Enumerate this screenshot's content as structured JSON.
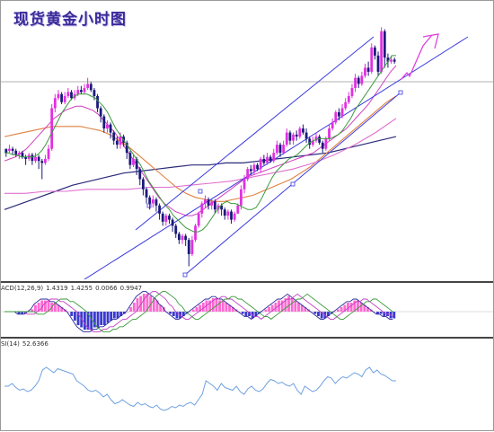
{
  "header": {
    "title": "现货黄金小时图"
  },
  "indicators": {
    "macd": {
      "label": "ACD(12,26,9)",
      "values": [
        "1.4319",
        "1.4255",
        "0.0066",
        "0.9947"
      ]
    },
    "rsi": {
      "label": "SI(14)",
      "value": "52.6366"
    }
  },
  "colors": {
    "bull_candle": "#e030e0",
    "bear_candle": "#1a1a7a",
    "trend_channel": "#3a3ae0",
    "ma_green": "#3a9a3a",
    "ma_magenta": "#d040c0",
    "ma_orange": "#e08040",
    "ma_navy": "#2a2a7a",
    "ma_pink": "#e070d0",
    "rsi_line": "#6fa0e0",
    "arrow": "#e040e0"
  },
  "chart_data": {
    "type": "candlestick",
    "title": "现货黄金小时图",
    "candles": [
      [
        60,
        58,
        60,
        56
      ],
      [
        59,
        60,
        62,
        58
      ],
      [
        60,
        59,
        61,
        57
      ],
      [
        59,
        57,
        60,
        56
      ],
      [
        57,
        58,
        59,
        55
      ],
      [
        58,
        56,
        59,
        55
      ],
      [
        56,
        55,
        57,
        52
      ],
      [
        55,
        57,
        58,
        54
      ],
      [
        57,
        54,
        58,
        52
      ],
      [
        54,
        56,
        58,
        53
      ],
      [
        56,
        54,
        57,
        50
      ],
      [
        54,
        53,
        55,
        45
      ],
      [
        53,
        55,
        57,
        52
      ],
      [
        55,
        60,
        62,
        54
      ],
      [
        60,
        80,
        82,
        59
      ],
      [
        80,
        85,
        87,
        78
      ],
      [
        85,
        87,
        89,
        84
      ],
      [
        87,
        83,
        88,
        82
      ],
      [
        83,
        86,
        88,
        82
      ],
      [
        86,
        88,
        90,
        85
      ],
      [
        88,
        85,
        89,
        84
      ],
      [
        85,
        87,
        89,
        84
      ],
      [
        87,
        89,
        91,
        86
      ],
      [
        89,
        88,
        91,
        87
      ],
      [
        88,
        90,
        92,
        87
      ],
      [
        90,
        92,
        95,
        89
      ],
      [
        92,
        89,
        93,
        88
      ],
      [
        89,
        86,
        90,
        84
      ],
      [
        86,
        80,
        87,
        78
      ],
      [
        80,
        76,
        81,
        73
      ],
      [
        76,
        70,
        77,
        68
      ],
      [
        70,
        72,
        74,
        68
      ],
      [
        72,
        68,
        73,
        65
      ],
      [
        68,
        64,
        69,
        62
      ],
      [
        64,
        62,
        66,
        60
      ],
      [
        62,
        66,
        68,
        60
      ],
      [
        66,
        63,
        67,
        61
      ],
      [
        63,
        58,
        64,
        55
      ],
      [
        58,
        52,
        59,
        50
      ],
      [
        52,
        55,
        57,
        51
      ],
      [
        55,
        50,
        56,
        47
      ],
      [
        50,
        45,
        51,
        42
      ],
      [
        45,
        40,
        46,
        37
      ],
      [
        40,
        36,
        41,
        33
      ],
      [
        36,
        33,
        37,
        30
      ],
      [
        33,
        35,
        37,
        31
      ],
      [
        35,
        32,
        36,
        29
      ],
      [
        32,
        28,
        33,
        25
      ],
      [
        28,
        24,
        29,
        22
      ],
      [
        24,
        27,
        28,
        22
      ],
      [
        27,
        25,
        28,
        23
      ],
      [
        25,
        22,
        26,
        19
      ],
      [
        22,
        18,
        23,
        16
      ],
      [
        18,
        15,
        19,
        13
      ],
      [
        15,
        17,
        18,
        13
      ],
      [
        17,
        15,
        18,
        12
      ],
      [
        15,
        8,
        16,
        2
      ],
      [
        8,
        15,
        17,
        7
      ],
      [
        15,
        22,
        23,
        14
      ],
      [
        22,
        28,
        29,
        21
      ],
      [
        28,
        33,
        34,
        26
      ],
      [
        33,
        35,
        37,
        31
      ],
      [
        35,
        32,
        36,
        30
      ],
      [
        32,
        34,
        35,
        30
      ],
      [
        34,
        30,
        35,
        28
      ],
      [
        30,
        32,
        33,
        28
      ],
      [
        32,
        30,
        33,
        27
      ],
      [
        30,
        27,
        31,
        25
      ],
      [
        27,
        29,
        30,
        25
      ],
      [
        29,
        25,
        30,
        23
      ],
      [
        25,
        28,
        29,
        24
      ],
      [
        28,
        32,
        33,
        45
      ],
      [
        32,
        40,
        42,
        30
      ],
      [
        40,
        45,
        47,
        38
      ],
      [
        45,
        50,
        51,
        44
      ],
      [
        50,
        49,
        52,
        47
      ],
      [
        49,
        52,
        53,
        47
      ],
      [
        52,
        50,
        53,
        49
      ],
      [
        50,
        55,
        56,
        48
      ],
      [
        55,
        53,
        57,
        52
      ],
      [
        53,
        56,
        58,
        52
      ],
      [
        56,
        54,
        57,
        53
      ],
      [
        54,
        58,
        60,
        53
      ],
      [
        58,
        62,
        64,
        57
      ],
      [
        62,
        58,
        63,
        56
      ],
      [
        58,
        62,
        64,
        57
      ],
      [
        62,
        68,
        70,
        61
      ],
      [
        68,
        64,
        69,
        62
      ],
      [
        64,
        67,
        68,
        62
      ],
      [
        67,
        66,
        69,
        64
      ],
      [
        66,
        70,
        71,
        65
      ],
      [
        70,
        68,
        72,
        67
      ],
      [
        68,
        65,
        70,
        63
      ],
      [
        65,
        62,
        66,
        60
      ],
      [
        62,
        64,
        66,
        61
      ],
      [
        64,
        66,
        68,
        63
      ],
      [
        66,
        63,
        67,
        62
      ],
      [
        63,
        60,
        64,
        58
      ],
      [
        60,
        65,
        66,
        59
      ],
      [
        65,
        70,
        72,
        64
      ],
      [
        70,
        73,
        75,
        69
      ],
      [
        73,
        78,
        79,
        72
      ],
      [
        78,
        76,
        80,
        74
      ],
      [
        76,
        80,
        82,
        75
      ],
      [
        80,
        83,
        85,
        79
      ],
      [
        83,
        86,
        88,
        82
      ],
      [
        86,
        90,
        92,
        85
      ],
      [
        90,
        95,
        97,
        88
      ],
      [
        95,
        92,
        96,
        90
      ],
      [
        92,
        96,
        98,
        91
      ],
      [
        96,
        100,
        102,
        95
      ],
      [
        100,
        98,
        103,
        96
      ],
      [
        98,
        110,
        112,
        97
      ],
      [
        110,
        106,
        111,
        104
      ],
      [
        106,
        98,
        108,
        96
      ],
      [
        98,
        118,
        120,
        97
      ],
      [
        118,
        105,
        119,
        100
      ],
      [
        105,
        103,
        107,
        100
      ],
      [
        103,
        104,
        106,
        102
      ],
      [
        104,
        103,
        105,
        102
      ]
    ],
    "y_range": [
      0,
      125
    ],
    "ma_green": [
      58,
      58,
      57,
      57,
      56,
      56,
      56,
      56,
      57,
      59,
      62,
      66,
      70,
      74,
      78,
      81,
      84,
      86,
      87,
      87,
      87,
      86,
      85,
      83,
      81,
      78,
      74,
      70,
      67,
      64,
      61,
      58,
      55,
      52,
      48,
      44,
      41,
      38,
      35,
      32,
      30,
      27,
      25,
      23,
      21,
      20,
      19,
      19,
      20,
      22,
      25,
      28,
      31,
      33,
      34,
      33,
      33,
      32,
      31,
      30,
      30,
      31,
      34,
      38,
      42,
      46,
      49,
      51,
      53,
      55,
      56,
      57,
      59,
      61,
      63,
      64,
      65,
      65,
      65,
      65,
      66,
      67,
      69,
      72,
      75,
      79,
      82,
      85,
      88,
      91,
      94,
      97,
      100,
      103,
      106,
      106
    ],
    "ma_magenta": [
      54,
      55,
      56,
      58,
      60,
      63,
      66,
      69,
      72,
      75,
      77,
      79,
      80,
      81,
      81,
      80,
      79,
      77,
      74,
      71,
      68,
      64,
      60,
      56,
      52,
      48,
      44,
      40,
      36,
      33,
      31,
      29,
      28,
      27,
      27,
      28,
      30,
      32,
      34,
      36,
      38,
      40,
      42,
      44,
      46,
      47,
      48,
      49,
      50,
      51,
      52,
      53,
      54,
      55,
      56,
      57,
      58,
      60,
      62,
      64,
      66,
      68,
      70,
      73,
      76,
      79,
      82,
      86,
      90,
      94,
      98,
      101
    ],
    "ma_orange": [
      66,
      67,
      68,
      69,
      70,
      71,
      71,
      71,
      71,
      70,
      69,
      67,
      64,
      61,
      57,
      53,
      49,
      45,
      41,
      38,
      36,
      35,
      34,
      34,
      35,
      36,
      37,
      39,
      41,
      43,
      45,
      48,
      51,
      55,
      59,
      63,
      67,
      71,
      75,
      79,
      83,
      86
    ],
    "ma_pink": [
      38,
      38,
      39,
      39,
      40,
      40,
      40,
      41,
      41,
      42,
      43,
      44,
      46,
      48,
      50,
      53,
      57,
      62,
      68,
      75
    ],
    "ma_navy": [
      30,
      33,
      36,
      39,
      42,
      44,
      46,
      48,
      49,
      50,
      51,
      52,
      52,
      53,
      53,
      54,
      55,
      56,
      57,
      58,
      60,
      62,
      64,
      66
    ],
    "macd_hist": [
      0,
      0,
      0,
      0,
      -1,
      -1,
      -1,
      0,
      1,
      3,
      4,
      5,
      5,
      5,
      4,
      4,
      3,
      2,
      1,
      0,
      -2,
      -4,
      -6,
      -7,
      -8,
      -8,
      -8,
      -7,
      -7,
      -6,
      -6,
      -5,
      -4,
      -3,
      -3,
      -2,
      -1,
      0,
      2,
      4,
      6,
      7,
      8,
      8,
      7,
      6,
      5,
      3,
      2,
      0,
      -1,
      -2,
      -3,
      -3,
      -2,
      -1,
      0,
      1,
      2,
      3,
      4,
      5,
      5,
      6,
      6,
      5,
      5,
      4,
      3,
      2,
      1,
      0,
      -1,
      -2,
      -2,
      -3,
      -2,
      -1,
      0,
      1,
      2,
      3,
      4,
      5,
      5,
      6,
      7,
      6,
      5,
      4,
      3,
      2,
      1,
      0,
      -1,
      -2,
      -3,
      -3,
      -2,
      -1,
      0,
      1,
      2,
      3,
      4,
      4,
      5,
      5,
      4,
      3,
      2,
      1,
      0,
      -1,
      -1,
      -2,
      -2,
      -3,
      -3
    ],
    "rsi": [
      48,
      48,
      50,
      47,
      45,
      46,
      44,
      45,
      48,
      52,
      60,
      62,
      60,
      58,
      61,
      60,
      59,
      58,
      57,
      52,
      50,
      48,
      45,
      44,
      45,
      43,
      40,
      42,
      38,
      35,
      36,
      38,
      36,
      34,
      33,
      36,
      34,
      35,
      33,
      32,
      34,
      31,
      30,
      31,
      33,
      32,
      34,
      33,
      35,
      36,
      34,
      38,
      42,
      52,
      50,
      48,
      45,
      50,
      47,
      46,
      45,
      48,
      44,
      42,
      46,
      48,
      45,
      44,
      46,
      50,
      53,
      52,
      50,
      51,
      49,
      48,
      50,
      45,
      42,
      48,
      46,
      44,
      45,
      48,
      52,
      55,
      54,
      50,
      53,
      55,
      54,
      56,
      58,
      57,
      55,
      60,
      62,
      58,
      60,
      57,
      56,
      54,
      52,
      52
    ]
  }
}
